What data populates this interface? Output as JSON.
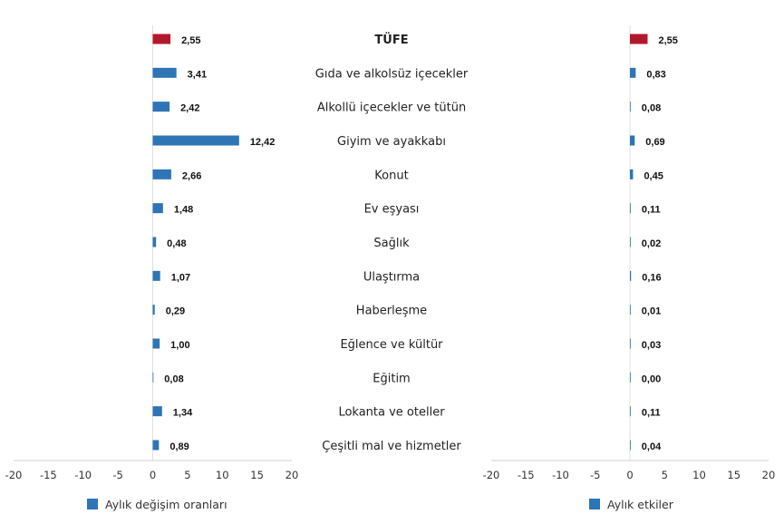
{
  "chart_data": [
    {
      "type": "bar",
      "orientation": "horizontal",
      "categories": [
        "TÜFE",
        "Gıda ve alkolsüz içecekler",
        "Alkollü içecekler ve tütün",
        "Giyim ve ayakkabı",
        "Konut",
        "Ev eşyası",
        "Sağlık",
        "Ulaştırma",
        "Haberleşme",
        "Eğlence ve kültür",
        "Eğitim",
        "Lokanta ve oteller",
        "Çeşitli mal ve hizmetler"
      ],
      "series": [
        {
          "name": "Aylık değişim oranları",
          "values": [
            2.55,
            3.41,
            2.42,
            12.42,
            2.66,
            1.48,
            0.48,
            1.07,
            0.29,
            1.0,
            0.08,
            1.34,
            0.89
          ],
          "labels": [
            "2,55",
            "3,41",
            "2,42",
            "12,42",
            "2,66",
            "1,48",
            "0,48",
            "1,07",
            "0,29",
            "1,00",
            "0,08",
            "1,34",
            "0,89"
          ]
        }
      ],
      "xlim": [
        -20,
        20
      ],
      "ticks": [
        "-20",
        "-15",
        "-10",
        "-5",
        "0",
        "5",
        "10",
        "15",
        "20"
      ],
      "highlight_index": 0,
      "legend_position": "bottom-left",
      "grid": false
    },
    {
      "type": "bar",
      "orientation": "horizontal",
      "categories": [
        "TÜFE",
        "Gıda ve alkolsüz içecekler",
        "Alkollü içecekler ve tütün",
        "Giyim ve ayakkabı",
        "Konut",
        "Ev eşyası",
        "Sağlık",
        "Ulaştırma",
        "Haberleşme",
        "Eğlence ve kültür",
        "Eğitim",
        "Lokanta ve oteller",
        "Çeşitli mal ve hizmetler"
      ],
      "series": [
        {
          "name": "Aylık etkiler",
          "values": [
            2.55,
            0.83,
            0.08,
            0.69,
            0.45,
            0.11,
            0.02,
            0.16,
            0.01,
            0.03,
            0.0,
            0.11,
            0.04
          ],
          "labels": [
            "2,55",
            "0,83",
            "0,08",
            "0,69",
            "0,45",
            "0,11",
            "0,02",
            "0,16",
            "0,01",
            "0,03",
            "0,00",
            "0,11",
            "0,04"
          ]
        }
      ],
      "xlim": [
        -20,
        20
      ],
      "ticks": [
        "-20",
        "-15",
        "-10",
        "-5",
        "0",
        "5",
        "10",
        "15",
        "20"
      ],
      "highlight_index": 0,
      "legend_position": "bottom-left",
      "grid": false
    }
  ],
  "colors": {
    "bar": "#2e75b6",
    "highlight": "#b2182b",
    "axis": "#d0d0d0",
    "zero_line": "#e0e0e0",
    "text": "#222222"
  }
}
